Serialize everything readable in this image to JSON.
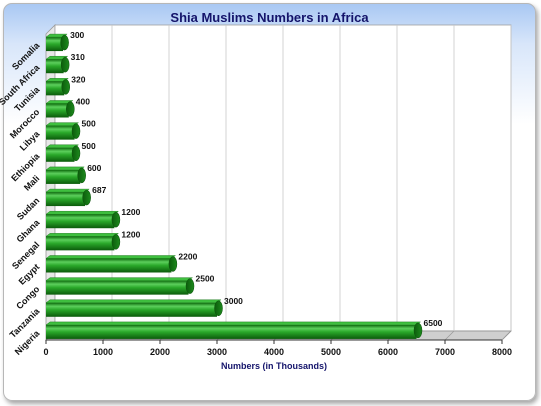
{
  "chart_data": {
    "type": "bar",
    "orientation": "horizontal",
    "title": "Shia Muslims Numbers in Africa",
    "xlabel": "Numbers (in Thousands)",
    "ylabel": "",
    "categories": [
      "Somalia",
      "South Africa",
      "Tunisia",
      "Morocco",
      "Libya",
      "Ethiopia",
      "Mali",
      "Sudan",
      "Ghana",
      "Senegal",
      "Egypt",
      "Congo",
      "Tanzania",
      "Nigeria"
    ],
    "values": [
      300,
      310,
      320,
      400,
      500,
      500,
      600,
      687,
      1200,
      1200,
      2200,
      2500,
      3000,
      6500
    ],
    "value_labels": [
      "300",
      "310",
      "320",
      "400",
      "500",
      "500",
      "600",
      "687",
      "1200",
      "1200",
      "2200",
      "2500",
      "3000",
      "6500"
    ],
    "xlim": [
      0,
      8000
    ],
    "xticks": [
      "0",
      "1000",
      "2000",
      "3000",
      "4000",
      "5000",
      "6000",
      "7000",
      "8000"
    ],
    "grid": true,
    "legend": "none",
    "colors": {
      "bar": "#1f9a1f",
      "bar_dark": "#0c5c0c",
      "bar_light": "#6fd66f",
      "title": "#14146b"
    }
  }
}
